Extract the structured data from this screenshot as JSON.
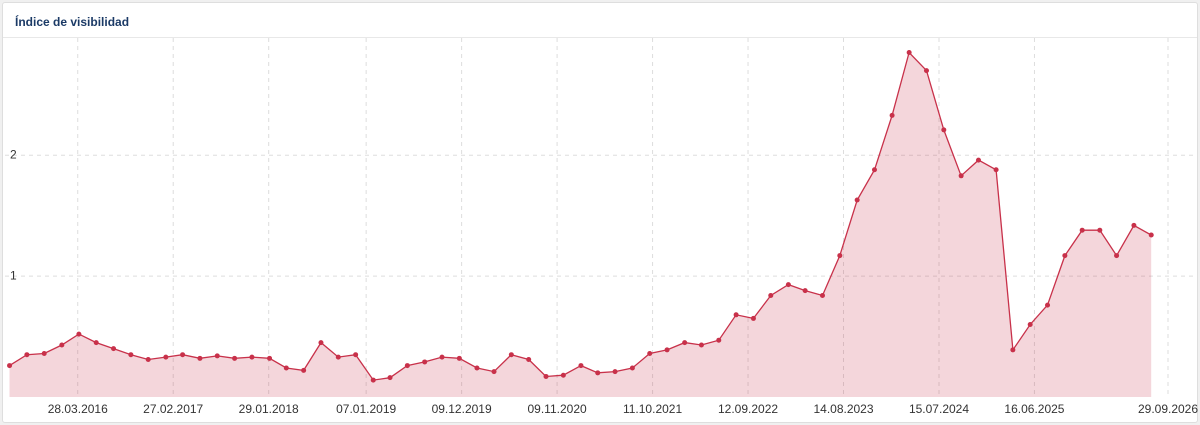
{
  "chart_data": {
    "type": "area",
    "title": "Índice de visibilidad",
    "color": "#c8314a",
    "x": [
      "2015-08-01",
      "2015-10-01",
      "2015-12-01",
      "2016-02-01",
      "2016-04-01",
      "2016-06-01",
      "2016-08-01",
      "2016-10-01",
      "2016-12-01",
      "2017-02-01",
      "2017-04-01",
      "2017-06-01",
      "2017-08-01",
      "2017-10-01",
      "2017-12-01",
      "2018-02-01",
      "2018-04-01",
      "2018-06-01",
      "2018-08-01",
      "2018-10-01",
      "2018-12-01",
      "2019-02-01",
      "2019-04-01",
      "2019-06-01",
      "2019-08-01",
      "2019-10-01",
      "2019-12-01",
      "2020-02-01",
      "2020-04-01",
      "2020-06-01",
      "2020-08-01",
      "2020-10-01",
      "2020-12-01",
      "2021-02-01",
      "2021-04-01",
      "2021-06-01",
      "2021-08-01",
      "2021-10-01",
      "2021-12-01",
      "2022-02-01",
      "2022-04-01",
      "2022-06-01",
      "2022-08-01",
      "2022-10-01",
      "2022-12-01",
      "2023-02-01",
      "2023-04-01",
      "2023-06-01",
      "2023-08-01",
      "2023-10-01",
      "2023-12-01",
      "2024-02-01",
      "2024-04-01",
      "2024-06-01",
      "2024-08-01",
      "2024-10-01",
      "2024-12-01",
      "2025-02-01",
      "2025-04-01",
      "2025-06-01",
      "2025-08-01",
      "2025-10-01",
      "2025-12-01",
      "2026-02-01",
      "2026-04-01",
      "2026-06-01",
      "2026-08-01"
    ],
    "values": [
      0.26,
      0.35,
      0.36,
      0.43,
      0.52,
      0.45,
      0.4,
      0.35,
      0.31,
      0.33,
      0.35,
      0.32,
      0.34,
      0.32,
      0.33,
      0.32,
      0.24,
      0.22,
      0.45,
      0.33,
      0.35,
      0.14,
      0.16,
      0.26,
      0.29,
      0.33,
      0.32,
      0.24,
      0.21,
      0.35,
      0.31,
      0.17,
      0.18,
      0.26,
      0.2,
      0.21,
      0.24,
      0.36,
      0.39,
      0.45,
      0.43,
      0.47,
      0.68,
      0.65,
      0.84,
      0.93,
      0.88,
      0.84,
      1.17,
      1.63,
      1.88,
      2.33,
      2.85,
      2.7,
      2.21,
      1.83,
      1.96,
      1.88,
      0.39,
      0.6,
      0.76,
      1.17,
      1.38,
      1.38,
      1.17,
      1.42,
      1.34
    ],
    "xlim": [
      "2015-07-16",
      "2027-01-02"
    ],
    "xticks": [
      {
        "value": "2016-03-28",
        "label": "28.03.2016"
      },
      {
        "value": "2017-02-27",
        "label": "27.02.2017"
      },
      {
        "value": "2018-01-29",
        "label": "29.01.2018"
      },
      {
        "value": "2019-01-07",
        "label": "07.01.2019"
      },
      {
        "value": "2019-12-09",
        "label": "09.12.2019"
      },
      {
        "value": "2020-11-09",
        "label": "09.11.2020"
      },
      {
        "value": "2021-10-11",
        "label": "11.10.2021"
      },
      {
        "value": "2022-09-12",
        "label": "12.09.2022"
      },
      {
        "value": "2023-08-14",
        "label": "14.08.2023"
      },
      {
        "value": "2024-07-15",
        "label": "15.07.2024"
      },
      {
        "value": "2025-06-16",
        "label": "16.06.2025"
      },
      {
        "value": "2026-09-29",
        "label": "29.09.2026"
      }
    ],
    "ylim": [
      0,
      2.97
    ],
    "yticks": [
      1,
      2
    ],
    "grid": true
  }
}
